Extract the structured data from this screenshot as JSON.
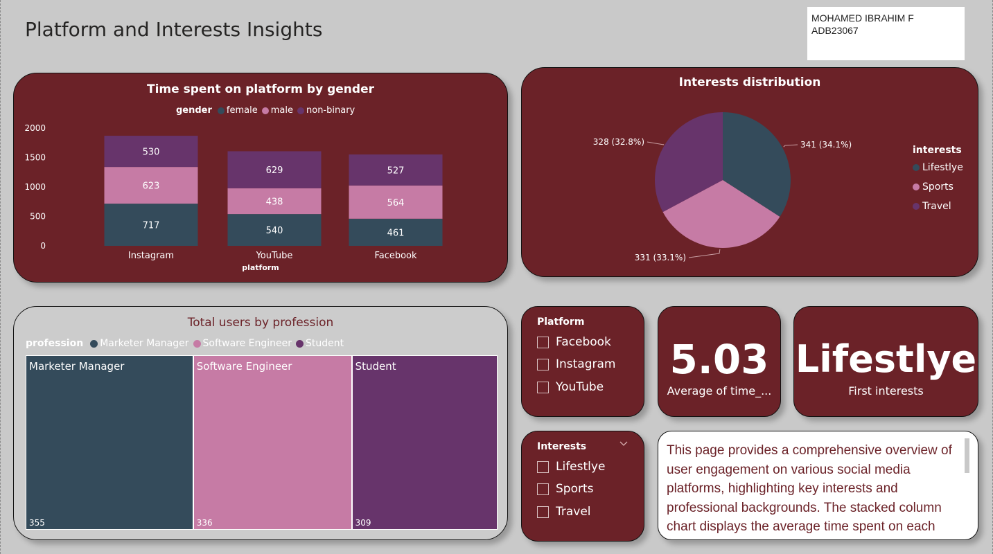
{
  "page": {
    "title": "Platform and Interests Insights",
    "author_name": "MOHAMED IBRAHIM F",
    "author_id": "ADB23067"
  },
  "colors": {
    "card_bg": "#6b2228",
    "female": "#344b5b",
    "male": "#c67ba5",
    "non_binary": "#67346b"
  },
  "stacked_chart": {
    "title": "Time spent on platform by gender",
    "legend_title": "gender",
    "legend": [
      "female",
      "male",
      "non-binary"
    ],
    "x_axis_title": "platform",
    "y_ticks": [
      "2000",
      "1500",
      "1000",
      "500",
      "0"
    ],
    "bar_labels": {
      "Instagram": [
        "717",
        "623",
        "530"
      ],
      "YouTube": [
        "540",
        "438",
        "629"
      ],
      "Facebook": [
        "461",
        "564",
        "527"
      ]
    },
    "categories": [
      "Instagram",
      "YouTube",
      "Facebook"
    ]
  },
  "pie_chart": {
    "title": "Interests distribution",
    "legend_title": "interests",
    "legend": [
      "Lifestlye",
      "Sports",
      "Travel"
    ],
    "labels": [
      "341 (34.1%)",
      "331 (33.1%)",
      "328 (32.8%)"
    ]
  },
  "treemap": {
    "title": "Total users by profession",
    "legend_title": "profession",
    "legend": [
      "Marketer Manager",
      "Software Engineer",
      "Student"
    ],
    "cells": [
      {
        "name": "Marketer Manager",
        "value": "355"
      },
      {
        "name": "Software Engineer",
        "value": "336"
      },
      {
        "name": "Student",
        "value": "309"
      }
    ]
  },
  "slicer_platform": {
    "title": "Platform",
    "items": [
      "Facebook",
      "Instagram",
      "YouTube"
    ]
  },
  "slicer_interests": {
    "title": "Interests",
    "items": [
      "Lifestlye",
      "Sports",
      "Travel"
    ]
  },
  "kpi_avg": {
    "value": "5.03",
    "label": "Average of time_..."
  },
  "kpi_interest": {
    "value": "Lifestlye",
    "label": "First interests"
  },
  "description": {
    "text": "This page provides a comprehensive overview of user engagement on various social media platforms, highlighting key interests and professional backgrounds. The stacked column chart displays the average time spent on each"
  },
  "chart_data": [
    {
      "type": "bar",
      "stacked": true,
      "title": "Time spent on platform by gender",
      "xlabel": "platform",
      "ylabel": "",
      "categories": [
        "Instagram",
        "YouTube",
        "Facebook"
      ],
      "series": [
        {
          "name": "female",
          "values": [
            717,
            540,
            461
          ]
        },
        {
          "name": "male",
          "values": [
            623,
            438,
            564
          ]
        },
        {
          "name": "non-binary",
          "values": [
            530,
            629,
            527
          ]
        }
      ],
      "ylim": [
        0,
        2000
      ],
      "legend": "top"
    },
    {
      "type": "pie",
      "title": "Interests distribution",
      "categories": [
        "Lifestlye",
        "Sports",
        "Travel"
      ],
      "values": [
        341,
        331,
        328
      ],
      "legend": "right"
    },
    {
      "type": "treemap",
      "title": "Total users by profession",
      "categories": [
        "Marketer Manager",
        "Software Engineer",
        "Student"
      ],
      "values": [
        355,
        336,
        309
      ],
      "legend": "top-left"
    }
  ]
}
